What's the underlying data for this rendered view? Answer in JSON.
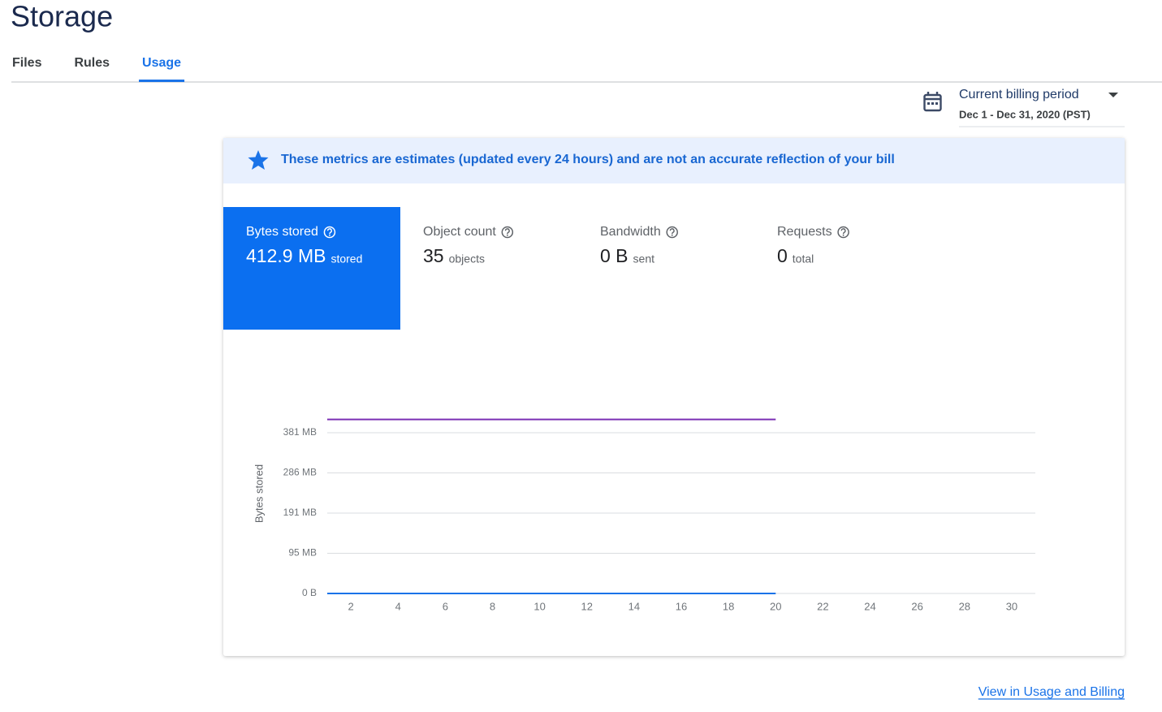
{
  "header": {
    "title": "Storage"
  },
  "tabs": [
    {
      "label": "Files",
      "selected": false
    },
    {
      "label": "Rules",
      "selected": false
    },
    {
      "label": "Usage",
      "selected": true
    }
  ],
  "billing": {
    "label": "Current billing period",
    "range": "Dec 1 - Dec 31, 2020 (PST)"
  },
  "banner": "These metrics are estimates (updated every 24 hours) and are not an accurate reflection of your bill",
  "metrics": [
    {
      "label": "Bytes stored",
      "value": "412.9 MB",
      "unit": "stored",
      "selected": true
    },
    {
      "label": "Object count",
      "value": "35",
      "unit": "objects",
      "selected": false
    },
    {
      "label": "Bandwidth",
      "value": "0 B",
      "unit": "sent",
      "selected": false
    },
    {
      "label": "Requests",
      "value": "0",
      "unit": "total",
      "selected": false
    }
  ],
  "chart_data": {
    "type": "line",
    "y_label": "Bytes stored",
    "x": [
      1,
      2,
      3,
      4,
      5,
      6,
      7,
      8,
      9,
      10,
      11,
      12,
      13,
      14,
      15,
      16,
      17,
      18,
      19,
      20
    ],
    "series": [
      {
        "color": "#7b2fb5",
        "values": [
          412.9,
          412.9,
          412.9,
          412.9,
          412.9,
          412.9,
          412.9,
          412.9,
          412.9,
          412.9,
          412.9,
          412.9,
          412.9,
          412.9,
          412.9,
          412.9,
          412.9,
          412.9,
          412.9,
          412.9
        ]
      },
      {
        "color": "#1a73e8",
        "values": [
          0,
          0,
          0,
          0,
          0,
          0,
          0,
          0,
          0,
          0,
          0,
          0,
          0,
          0,
          0,
          0,
          0,
          0,
          0,
          0
        ]
      }
    ],
    "xlim": [
      1,
      31
    ],
    "xticks": [
      2,
      4,
      6,
      8,
      10,
      12,
      14,
      16,
      18,
      20,
      22,
      24,
      26,
      28,
      30
    ],
    "ylim": [
      0,
      381.3
    ],
    "yticks": [
      {
        "value": 0,
        "label": "0 B"
      },
      {
        "value": 95.3,
        "label": "95 MB"
      },
      {
        "value": 190.7,
        "label": "191 MB"
      },
      {
        "value": 286,
        "label": "286 MB"
      },
      {
        "value": 381.3,
        "label": "381 MB"
      }
    ],
    "grid": true
  },
  "footer": {
    "link": "View in Usage and Billing"
  }
}
